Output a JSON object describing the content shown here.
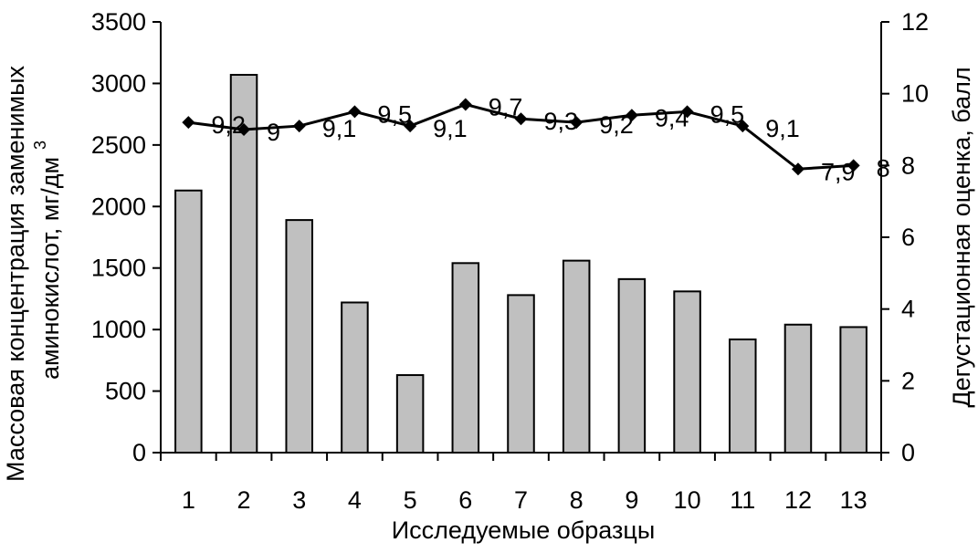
{
  "chart_data": {
    "type": "bar",
    "xlabel": "Исследуемые образцы",
    "ylabel_left_line1": "Массовая концентрация заменимых",
    "ylabel_left_line2": "аминокислот, мг/дм",
    "ylabel_left_superscript": "3",
    "ylabel_right": "Дегустационная оценка, балл",
    "categories": [
      "1",
      "2",
      "3",
      "4",
      "5",
      "6",
      "7",
      "8",
      "9",
      "10",
      "11",
      "12",
      "13"
    ],
    "ylim_left": [
      0,
      3500
    ],
    "yticks_left": [
      "0",
      "500",
      "1000",
      "1500",
      "2000",
      "2500",
      "3000",
      "3500"
    ],
    "ylim_right": [
      0,
      12
    ],
    "yticks_right": [
      "0",
      "2",
      "4",
      "6",
      "8",
      "10",
      "12"
    ],
    "series": [
      {
        "kind": "bar",
        "axis": "left",
        "color": "#c0c0c0",
        "values": [
          2130,
          3070,
          1890,
          1220,
          630,
          1540,
          1280,
          1560,
          1410,
          1310,
          920,
          1040,
          1020
        ]
      },
      {
        "kind": "line",
        "axis": "right",
        "color": "#000000",
        "values": [
          9.2,
          9.0,
          9.1,
          9.5,
          9.1,
          9.7,
          9.3,
          9.2,
          9.4,
          9.5,
          9.1,
          7.9,
          8.0
        ],
        "labels": [
          "9,2",
          "9",
          "9,1",
          "9,5",
          "9,1",
          "9,7",
          "9,3",
          "9,2",
          "9,4",
          "9,5",
          "9,1",
          "7,9",
          "8"
        ]
      }
    ],
    "grid": false
  }
}
